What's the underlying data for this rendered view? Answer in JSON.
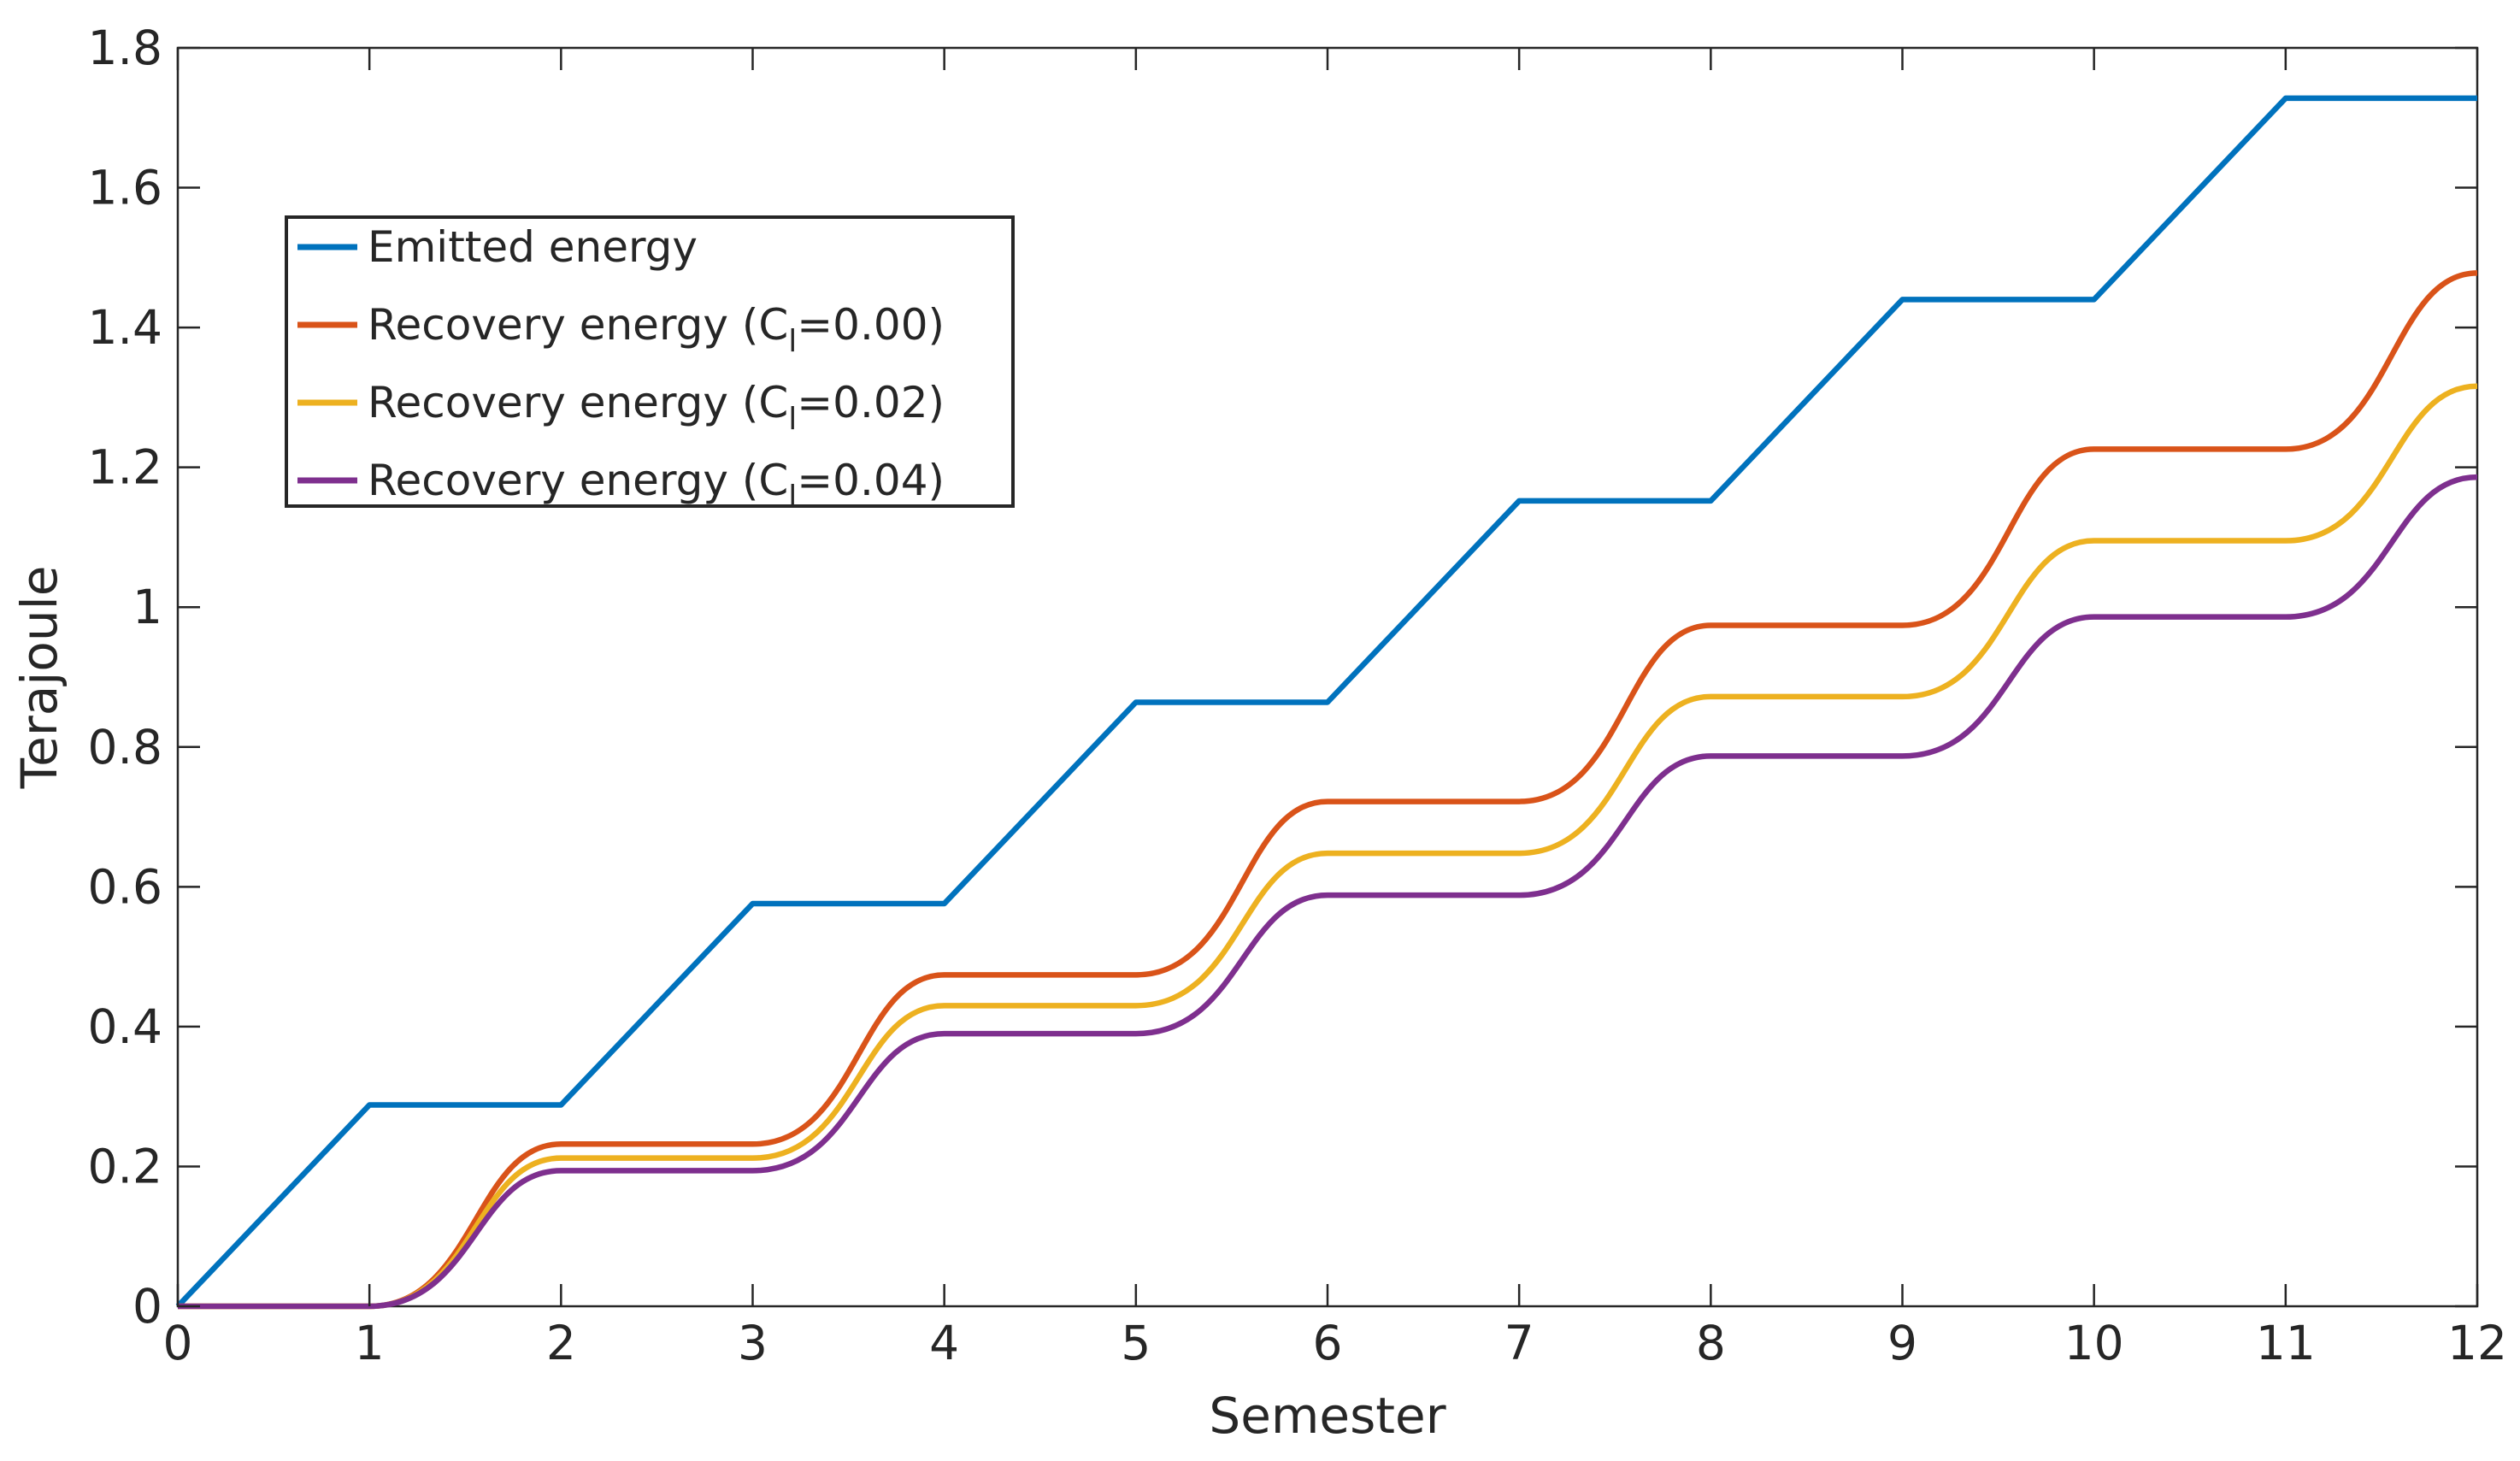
{
  "chart_data": {
    "type": "line",
    "title": "",
    "xlabel": "Semester",
    "ylabel": "Terajoule",
    "xlim": [
      0,
      12
    ],
    "ylim": [
      0,
      1.8
    ],
    "xticks": [
      "0",
      "1",
      "2",
      "3",
      "4",
      "5",
      "6",
      "7",
      "8",
      "9",
      "10",
      "11",
      "12"
    ],
    "yticks": [
      "0",
      "0.2",
      "0.4",
      "0.6",
      "0.8",
      "1",
      "1.2",
      "1.4",
      "1.6",
      "1.8"
    ],
    "legend_position": "top-left",
    "series": [
      {
        "name": "Emitted energy",
        "legend_prefix": "Emitted energy",
        "legend_sub": "",
        "legend_suffix": "",
        "color": "#0072BD",
        "shape": "linear",
        "x": [
          0,
          1,
          2,
          3,
          4,
          5,
          6,
          7,
          8,
          9,
          10,
          11,
          12
        ],
        "y": [
          0,
          0.288,
          0.288,
          0.576,
          0.576,
          0.864,
          0.864,
          1.152,
          1.152,
          1.44,
          1.44,
          1.728,
          1.728
        ]
      },
      {
        "name": "Recovery energy (C_l=0.00)",
        "legend_prefix": "Recovery energy (C",
        "legend_sub": "l",
        "legend_suffix": "=0.00)",
        "color": "#D95319",
        "shape": "smooth",
        "x": [
          0,
          1,
          2,
          3,
          4,
          5,
          6,
          7,
          8,
          9,
          10,
          11,
          12
        ],
        "y": [
          0,
          0,
          0.232,
          0.232,
          0.474,
          0.474,
          0.722,
          0.722,
          0.974,
          0.974,
          1.226,
          1.226,
          1.478
        ]
      },
      {
        "name": "Recovery energy (C_l=0.02)",
        "legend_prefix": "Recovery energy (C",
        "legend_sub": "l",
        "legend_suffix": "=0.02)",
        "color": "#EDB120",
        "shape": "smooth",
        "x": [
          0,
          1,
          2,
          3,
          4,
          5,
          6,
          7,
          8,
          9,
          10,
          11,
          12
        ],
        "y": [
          0,
          0,
          0.212,
          0.212,
          0.43,
          0.43,
          0.648,
          0.648,
          0.872,
          0.872,
          1.095,
          1.095,
          1.316
        ]
      },
      {
        "name": "Recovery energy (C_l=0.04)",
        "legend_prefix": "Recovery energy (C",
        "legend_sub": "l",
        "legend_suffix": "=0.04)",
        "color": "#7E2F8E",
        "shape": "smooth",
        "x": [
          0,
          1,
          2,
          3,
          4,
          5,
          6,
          7,
          8,
          9,
          10,
          11,
          12
        ],
        "y": [
          0,
          0,
          0.194,
          0.194,
          0.39,
          0.39,
          0.588,
          0.588,
          0.787,
          0.787,
          0.986,
          0.986,
          1.186
        ]
      }
    ]
  }
}
